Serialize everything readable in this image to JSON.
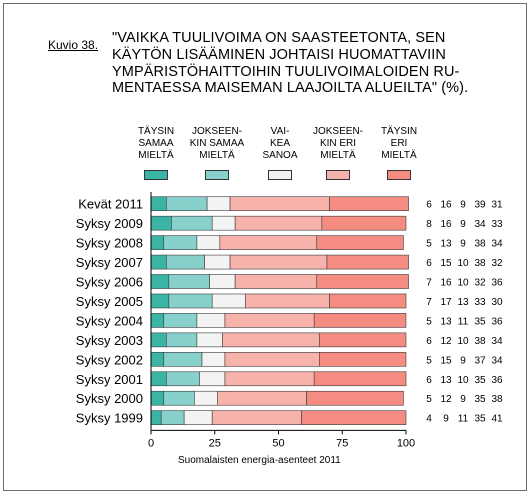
{
  "figure_label": "Kuvio 38.",
  "title_lines": [
    "\"VAIKKA TUULIVOIMA ON SAASTEETONTA, SEN",
    "KÄYTÖN LISÄÄMINEN JOHTAISI HUOMATTAVIIN",
    "YMPÄRISTÖHAITTOIHIN TUULIVOIMALOIDEN RU-",
    "MENTAESSA MAISEMAN LAAJOILTA ALUEILTA\" (%)."
  ],
  "legend": [
    {
      "lines": [
        "TÄYSIN",
        "SAMAA",
        "MIELTÄ"
      ],
      "color": "#3ab5a5"
    },
    {
      "lines": [
        "JOKSEEN-",
        "KIN SAMAA",
        "MIELTÄ"
      ],
      "color": "#88d0cc"
    },
    {
      "lines": [
        "VAI-",
        "KEA",
        "SANOA"
      ],
      "color": "#f3f3f3"
    },
    {
      "lines": [
        "JOKSEEN-",
        "KIN ERI",
        "MIELTÄ"
      ],
      "color": "#f7b2ab"
    },
    {
      "lines": [
        "TÄYSIN",
        "ERI",
        "MIELTÄ"
      ],
      "color": "#f48c82"
    }
  ],
  "chart_data": {
    "type": "bar",
    "orientation": "horizontal",
    "stacked": true,
    "categories": [
      "Kevät 2011",
      "Syksy 2009",
      "Syksy 2008",
      "Syksy 2007",
      "Syksy 2006",
      "Syksy 2005",
      "Syksy 2004",
      "Syksy 2003",
      "Syksy 2002",
      "Syksy 2001",
      "Syksy 2000",
      "Syksy 1999"
    ],
    "series": [
      {
        "name": "TÄYSIN SAMAA MIELTÄ",
        "color": "#3ab5a5",
        "values": [
          6,
          8,
          5,
          6,
          7,
          7,
          5,
          6,
          5,
          6,
          5,
          4
        ]
      },
      {
        "name": "JOKSEENKIN SAMAA MIELTÄ",
        "color": "#88d0cc",
        "values": [
          16,
          16,
          13,
          15,
          16,
          17,
          13,
          12,
          15,
          13,
          12,
          9
        ]
      },
      {
        "name": "VAIKEA SANOA",
        "color": "#f3f3f3",
        "values": [
          9,
          9,
          9,
          10,
          10,
          13,
          11,
          10,
          9,
          10,
          9,
          11
        ]
      },
      {
        "name": "JOKSEENKIN ERI MIELTÄ",
        "color": "#f7b2ab",
        "values": [
          39,
          34,
          38,
          38,
          32,
          33,
          35,
          38,
          37,
          35,
          35,
          35
        ]
      },
      {
        "name": "TÄYSIN ERI MIELTÄ",
        "color": "#f48c82",
        "values": [
          31,
          33,
          34,
          32,
          36,
          30,
          36,
          34,
          34,
          36,
          38,
          41
        ]
      }
    ],
    "xlim": [
      0,
      100
    ],
    "xticks": [
      0,
      25,
      50,
      75,
      100
    ],
    "grid": false,
    "legend_position": "top"
  },
  "source": "Suomalaisten energia-asenteet 2011"
}
